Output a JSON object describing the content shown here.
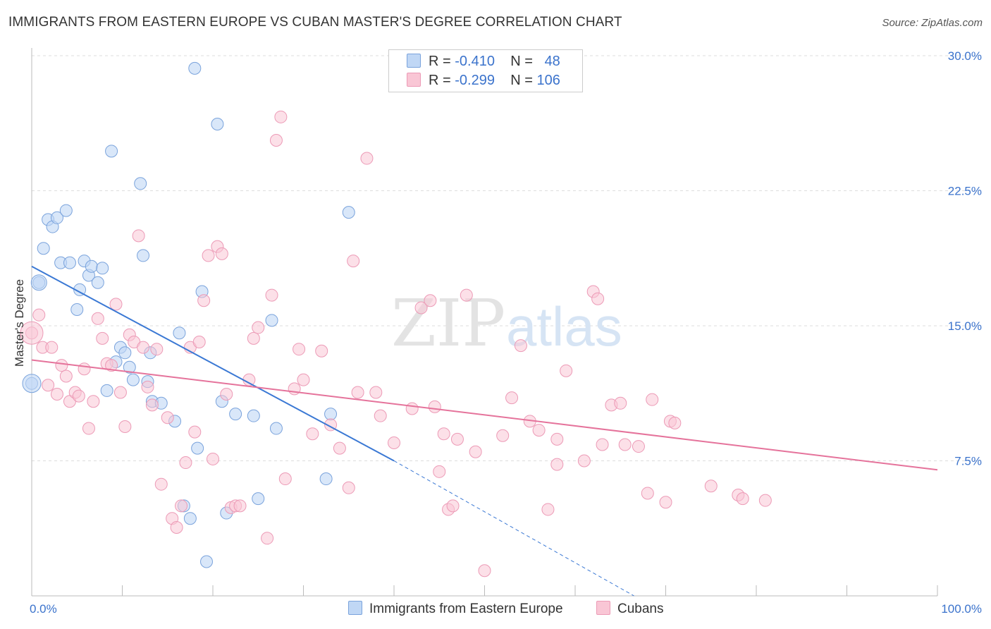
{
  "title": "IMMIGRANTS FROM EASTERN EUROPE VS CUBAN MASTER'S DEGREE CORRELATION CHART",
  "source": "Source: ZipAtlas.com",
  "watermark": {
    "zip": "ZIP",
    "atlas": "atlas"
  },
  "legend": {
    "r_label": "R =",
    "n_label": "N =",
    "series": [
      {
        "name": "Immigrants from Eastern Europe",
        "r": "-0.410",
        "n": "48",
        "color": "#7aa3dc",
        "fill": "#c0d7f5",
        "line": "#3a78d4"
      },
      {
        "name": "Cubans",
        "r": "-0.299",
        "n": "106",
        "color": "#ec9ab6",
        "fill": "#f9c6d5",
        "line": "#e5739b"
      }
    ]
  },
  "chart_data": {
    "type": "scatter",
    "title": "IMMIGRANTS FROM EASTERN EUROPE VS CUBAN MASTER'S DEGREE CORRELATION CHART",
    "xlabel": "",
    "ylabel": "Master's Degree",
    "xlim": [
      0,
      100
    ],
    "ylim": [
      0,
      30
    ],
    "x_tick_labels": [
      "0.0%",
      "100.0%"
    ],
    "y_ticks": [
      7.5,
      15.0,
      22.5,
      30.0
    ],
    "y_tick_labels": [
      "7.5%",
      "15.0%",
      "22.5%",
      "30.0%"
    ],
    "grid": true,
    "series": [
      {
        "name": "Immigrants from Eastern Europe",
        "trend": {
          "x0": 0,
          "y0": 18.3,
          "x1": 40,
          "y1": 7.5,
          "dashed_to_x": 66.5,
          "dashed_to_y": 0
        },
        "points": [
          [
            0,
            11.8
          ],
          [
            0.8,
            17.4
          ],
          [
            1.3,
            19.3
          ],
          [
            1.8,
            20.9
          ],
          [
            2.3,
            20.5
          ],
          [
            2.8,
            21.0
          ],
          [
            3.2,
            18.5
          ],
          [
            3.8,
            21.4
          ],
          [
            4.2,
            18.5
          ],
          [
            5,
            15.9
          ],
          [
            5.3,
            17.0
          ],
          [
            5.8,
            18.6
          ],
          [
            6.3,
            17.8
          ],
          [
            6.6,
            18.3
          ],
          [
            7.3,
            17.4
          ],
          [
            7.8,
            18.2
          ],
          [
            8.3,
            11.4
          ],
          [
            8.8,
            24.7
          ],
          [
            9.3,
            13.0
          ],
          [
            9.8,
            13.8
          ],
          [
            10.3,
            13.5
          ],
          [
            10.8,
            12.7
          ],
          [
            11.2,
            12.0
          ],
          [
            12.3,
            18.9
          ],
          [
            12.8,
            11.9
          ],
          [
            13.1,
            13.5
          ],
          [
            13.3,
            10.8
          ],
          [
            14.3,
            10.7
          ],
          [
            15.8,
            9.7
          ],
          [
            16.3,
            14.6
          ],
          [
            16.8,
            5.0
          ],
          [
            17.5,
            4.3
          ],
          [
            18,
            29.3
          ],
          [
            18.3,
            8.2
          ],
          [
            18.8,
            16.9
          ],
          [
            19.3,
            1.9
          ],
          [
            20.5,
            26.2
          ],
          [
            21,
            10.8
          ],
          [
            21.5,
            4.6
          ],
          [
            22.5,
            10.1
          ],
          [
            24.5,
            10.0
          ],
          [
            25,
            5.4
          ],
          [
            26.5,
            15.3
          ],
          [
            27,
            9.3
          ],
          [
            32.5,
            6.5
          ],
          [
            33,
            10.1
          ],
          [
            35,
            21.3
          ],
          [
            12,
            22.9
          ]
        ]
      },
      {
        "name": "Cubans",
        "trend": {
          "x0": 0,
          "y0": 13.1,
          "x1": 100,
          "y1": 7.0
        },
        "points": [
          [
            0,
            14.6
          ],
          [
            0.8,
            15.6
          ],
          [
            1.2,
            13.8
          ],
          [
            1.8,
            11.7
          ],
          [
            2.2,
            13.8
          ],
          [
            2.8,
            11.2
          ],
          [
            3.3,
            12.8
          ],
          [
            3.8,
            12.2
          ],
          [
            4.2,
            10.8
          ],
          [
            4.8,
            11.3
          ],
          [
            5.2,
            11.1
          ],
          [
            5.8,
            12.6
          ],
          [
            6.3,
            9.3
          ],
          [
            6.8,
            10.8
          ],
          [
            7.3,
            15.4
          ],
          [
            7.8,
            14.3
          ],
          [
            8.3,
            12.9
          ],
          [
            8.8,
            12.8
          ],
          [
            9.3,
            16.2
          ],
          [
            9.8,
            11.3
          ],
          [
            10.3,
            9.4
          ],
          [
            10.8,
            14.5
          ],
          [
            11.3,
            14.1
          ],
          [
            11.8,
            20.0
          ],
          [
            12.3,
            13.8
          ],
          [
            12.8,
            11.6
          ],
          [
            13.3,
            10.6
          ],
          [
            13.8,
            13.7
          ],
          [
            14.3,
            6.2
          ],
          [
            15,
            9.9
          ],
          [
            15.5,
            4.3
          ],
          [
            16,
            3.8
          ],
          [
            16.5,
            5.0
          ],
          [
            17,
            7.4
          ],
          [
            17.5,
            13.8
          ],
          [
            18,
            9.1
          ],
          [
            18.5,
            14.1
          ],
          [
            19,
            16.4
          ],
          [
            19.5,
            18.9
          ],
          [
            20,
            7.6
          ],
          [
            20.5,
            19.4
          ],
          [
            21,
            19.0
          ],
          [
            21.5,
            11.2
          ],
          [
            22,
            4.9
          ],
          [
            22.5,
            5.0
          ],
          [
            23,
            5.0
          ],
          [
            24,
            12.0
          ],
          [
            24.5,
            14.3
          ],
          [
            25,
            14.9
          ],
          [
            26,
            3.2
          ],
          [
            26.5,
            16.7
          ],
          [
            27,
            25.3
          ],
          [
            27.5,
            26.6
          ],
          [
            28,
            6.5
          ],
          [
            29,
            11.5
          ],
          [
            29.5,
            13.7
          ],
          [
            30,
            12.0
          ],
          [
            31,
            9.0
          ],
          [
            32,
            13.6
          ],
          [
            33,
            9.5
          ],
          [
            34,
            8.2
          ],
          [
            35,
            6.0
          ],
          [
            35.5,
            18.6
          ],
          [
            36,
            11.3
          ],
          [
            37,
            24.3
          ],
          [
            38,
            11.3
          ],
          [
            38.5,
            10.0
          ],
          [
            40,
            8.5
          ],
          [
            42,
            10.4
          ],
          [
            43,
            16.0
          ],
          [
            44,
            16.4
          ],
          [
            44.5,
            10.5
          ],
          [
            45,
            6.9
          ],
          [
            45.5,
            9.0
          ],
          [
            46,
            4.8
          ],
          [
            46.5,
            5.0
          ],
          [
            47,
            8.7
          ],
          [
            48,
            16.7
          ],
          [
            49,
            8.0
          ],
          [
            52,
            8.9
          ],
          [
            53,
            11.0
          ],
          [
            54,
            13.9
          ],
          [
            55,
            9.7
          ],
          [
            56,
            9.2
          ],
          [
            57,
            4.8
          ],
          [
            58,
            8.7
          ],
          [
            59,
            12.5
          ],
          [
            61,
            7.5
          ],
          [
            62,
            16.9
          ],
          [
            62.5,
            16.5
          ],
          [
            63,
            8.4
          ],
          [
            64,
            10.6
          ],
          [
            65,
            10.7
          ],
          [
            65.5,
            8.4
          ],
          [
            67,
            8.3
          ],
          [
            68,
            5.7
          ],
          [
            68.5,
            10.9
          ],
          [
            70,
            5.2
          ],
          [
            70.5,
            9.7
          ],
          [
            71,
            9.6
          ],
          [
            75,
            6.1
          ],
          [
            78,
            5.6
          ],
          [
            78.5,
            5.4
          ],
          [
            81,
            5.3
          ],
          [
            50,
            1.4
          ],
          [
            58,
            7.3
          ]
        ]
      }
    ]
  }
}
